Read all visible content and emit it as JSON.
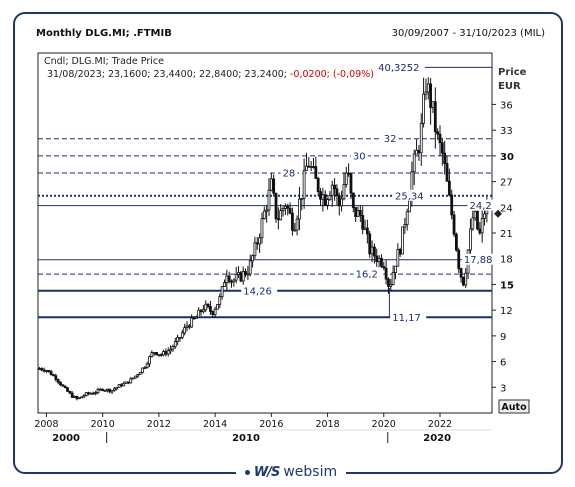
{
  "header": {
    "title": "Monthly DLG.MI; .FTMIB",
    "date_range": "30/09/2007 - 31/10/2023 (MIL)"
  },
  "legend": {
    "line1": "Cndl; DLG.MI; Trade Price",
    "line2_values": "31/08/2023; 23,1600; 23,4400; 22,8400; 23,2400;",
    "line2_change": "-0,0200; (-0,09%)"
  },
  "axis": {
    "y_unit_line1": "Price",
    "y_unit_line2": "EUR",
    "auto_button": "Auto"
  },
  "brand": {
    "mark": "W/S",
    "name": "websim"
  },
  "colors": {
    "line": "#1b2f6e",
    "candle": "#111111",
    "change_negative": "#d00000",
    "frame": "#1b3a6b"
  },
  "chart_data": {
    "type": "candlestick",
    "ylim": [
      0,
      42
    ],
    "xlim": [
      2007.7,
      2023.85
    ],
    "y_ticks": [
      3,
      6,
      9,
      12,
      15,
      18,
      21,
      24,
      27,
      30,
      33,
      36
    ],
    "y_ticks_bold": [
      15,
      30
    ],
    "y_tick_labels": [
      "3",
      "6",
      "9",
      "12",
      "15",
      "18",
      "21",
      "24",
      "27",
      "30",
      "33",
      "36"
    ],
    "x_ticks": [
      2008,
      2010,
      2012,
      2014,
      2016,
      2018,
      2020,
      2022
    ],
    "x_tick_labels": [
      "2008",
      "2010",
      "2012",
      "2014",
      "2016",
      "2018",
      "2020",
      "2022"
    ],
    "x_decades": [
      {
        "label": "2000",
        "x": 2008.7
      },
      {
        "label": "2010",
        "x": 2015.1
      },
      {
        "label": "2020",
        "x": 2021.9
      }
    ],
    "decade_ticks": [
      2010,
      2020
    ],
    "price_path": [
      [
        2007.75,
        5.2
      ],
      [
        2008.0,
        5.0
      ],
      [
        2008.3,
        4.2
      ],
      [
        2008.6,
        3.0
      ],
      [
        2008.9,
        2.0
      ],
      [
        2009.1,
        1.6
      ],
      [
        2009.4,
        2.2
      ],
      [
        2009.7,
        2.4
      ],
      [
        2010.0,
        2.8
      ],
      [
        2010.3,
        2.6
      ],
      [
        2010.6,
        3.2
      ],
      [
        2010.9,
        3.6
      ],
      [
        2011.2,
        4.4
      ],
      [
        2011.5,
        5.5
      ],
      [
        2011.8,
        7.2
      ],
      [
        2012.1,
        6.8
      ],
      [
        2012.4,
        7.4
      ],
      [
        2012.7,
        8.6
      ],
      [
        2013.0,
        10.2
      ],
      [
        2013.3,
        11.0
      ],
      [
        2013.6,
        12.4
      ],
      [
        2013.9,
        11.8
      ],
      [
        2014.2,
        13.5
      ],
      [
        2014.4,
        16.6
      ],
      [
        2014.6,
        15.4
      ],
      [
        2014.9,
        15.9
      ],
      [
        2015.2,
        16.8
      ],
      [
        2015.5,
        20.0
      ],
      [
        2015.8,
        24.0
      ],
      [
        2016.0,
        26.5
      ],
      [
        2016.2,
        22.5
      ],
      [
        2016.5,
        24.5
      ],
      [
        2016.8,
        21.8
      ],
      [
        2017.1,
        26.0
      ],
      [
        2017.3,
        29.5
      ],
      [
        2017.6,
        26.8
      ],
      [
        2017.9,
        25.0
      ],
      [
        2018.2,
        27.0
      ],
      [
        2018.4,
        24.0
      ],
      [
        2018.7,
        28.5
      ],
      [
        2018.9,
        23.5
      ],
      [
        2019.2,
        23.0
      ],
      [
        2019.5,
        19.0
      ],
      [
        2019.8,
        18.0
      ],
      [
        2020.0,
        17.5
      ],
      [
        2020.2,
        14.6
      ],
      [
        2020.4,
        17.5
      ],
      [
        2020.6,
        19.5
      ],
      [
        2020.8,
        23.5
      ],
      [
        2021.0,
        28.0
      ],
      [
        2021.3,
        32.0
      ],
      [
        2021.5,
        38.5
      ],
      [
        2021.7,
        36.0
      ],
      [
        2021.9,
        32.0
      ],
      [
        2022.1,
        30.0
      ],
      [
        2022.3,
        25.5
      ],
      [
        2022.5,
        21.5
      ],
      [
        2022.7,
        16.5
      ],
      [
        2022.85,
        15.2
      ],
      [
        2023.0,
        19.0
      ],
      [
        2023.2,
        23.5
      ],
      [
        2023.4,
        20.5
      ],
      [
        2023.6,
        23.8
      ],
      [
        2023.7,
        23.24
      ]
    ],
    "levels": [
      {
        "value": 40.3252,
        "label": "40,3252",
        "style": "solid-thin",
        "x_from": 2021.4,
        "label_x": 2019.8
      },
      {
        "value": 32,
        "label": "32",
        "style": "dashed",
        "label_x": 2020.0
      },
      {
        "value": 30,
        "label": "30",
        "style": "dashed",
        "label_x": 2018.9
      },
      {
        "value": 28,
        "label": "28",
        "style": "dashed",
        "label_x": 2016.4
      },
      {
        "value": 25.34,
        "label": "25,34",
        "style": "dotted-bold",
        "label_x": 2020.4
      },
      {
        "value": 24.2,
        "label": "24,2",
        "style": "solid-thin",
        "label_x": 2023.05
      },
      {
        "value": 17.88,
        "label": "17,88",
        "style": "solid-thin",
        "label_x": 2022.85
      },
      {
        "value": 16.2,
        "label": "16,2",
        "style": "dashed",
        "label_x": 2019.0
      },
      {
        "value": 14.26,
        "label": "14,26",
        "style": "solid-bold",
        "label_x": 2015.0
      },
      {
        "value": 11.17,
        "label": "11,17",
        "style": "solid-bold",
        "label_x": 2020.3
      }
    ],
    "low_marker": {
      "x": 2020.2,
      "value": 11.17
    }
  }
}
